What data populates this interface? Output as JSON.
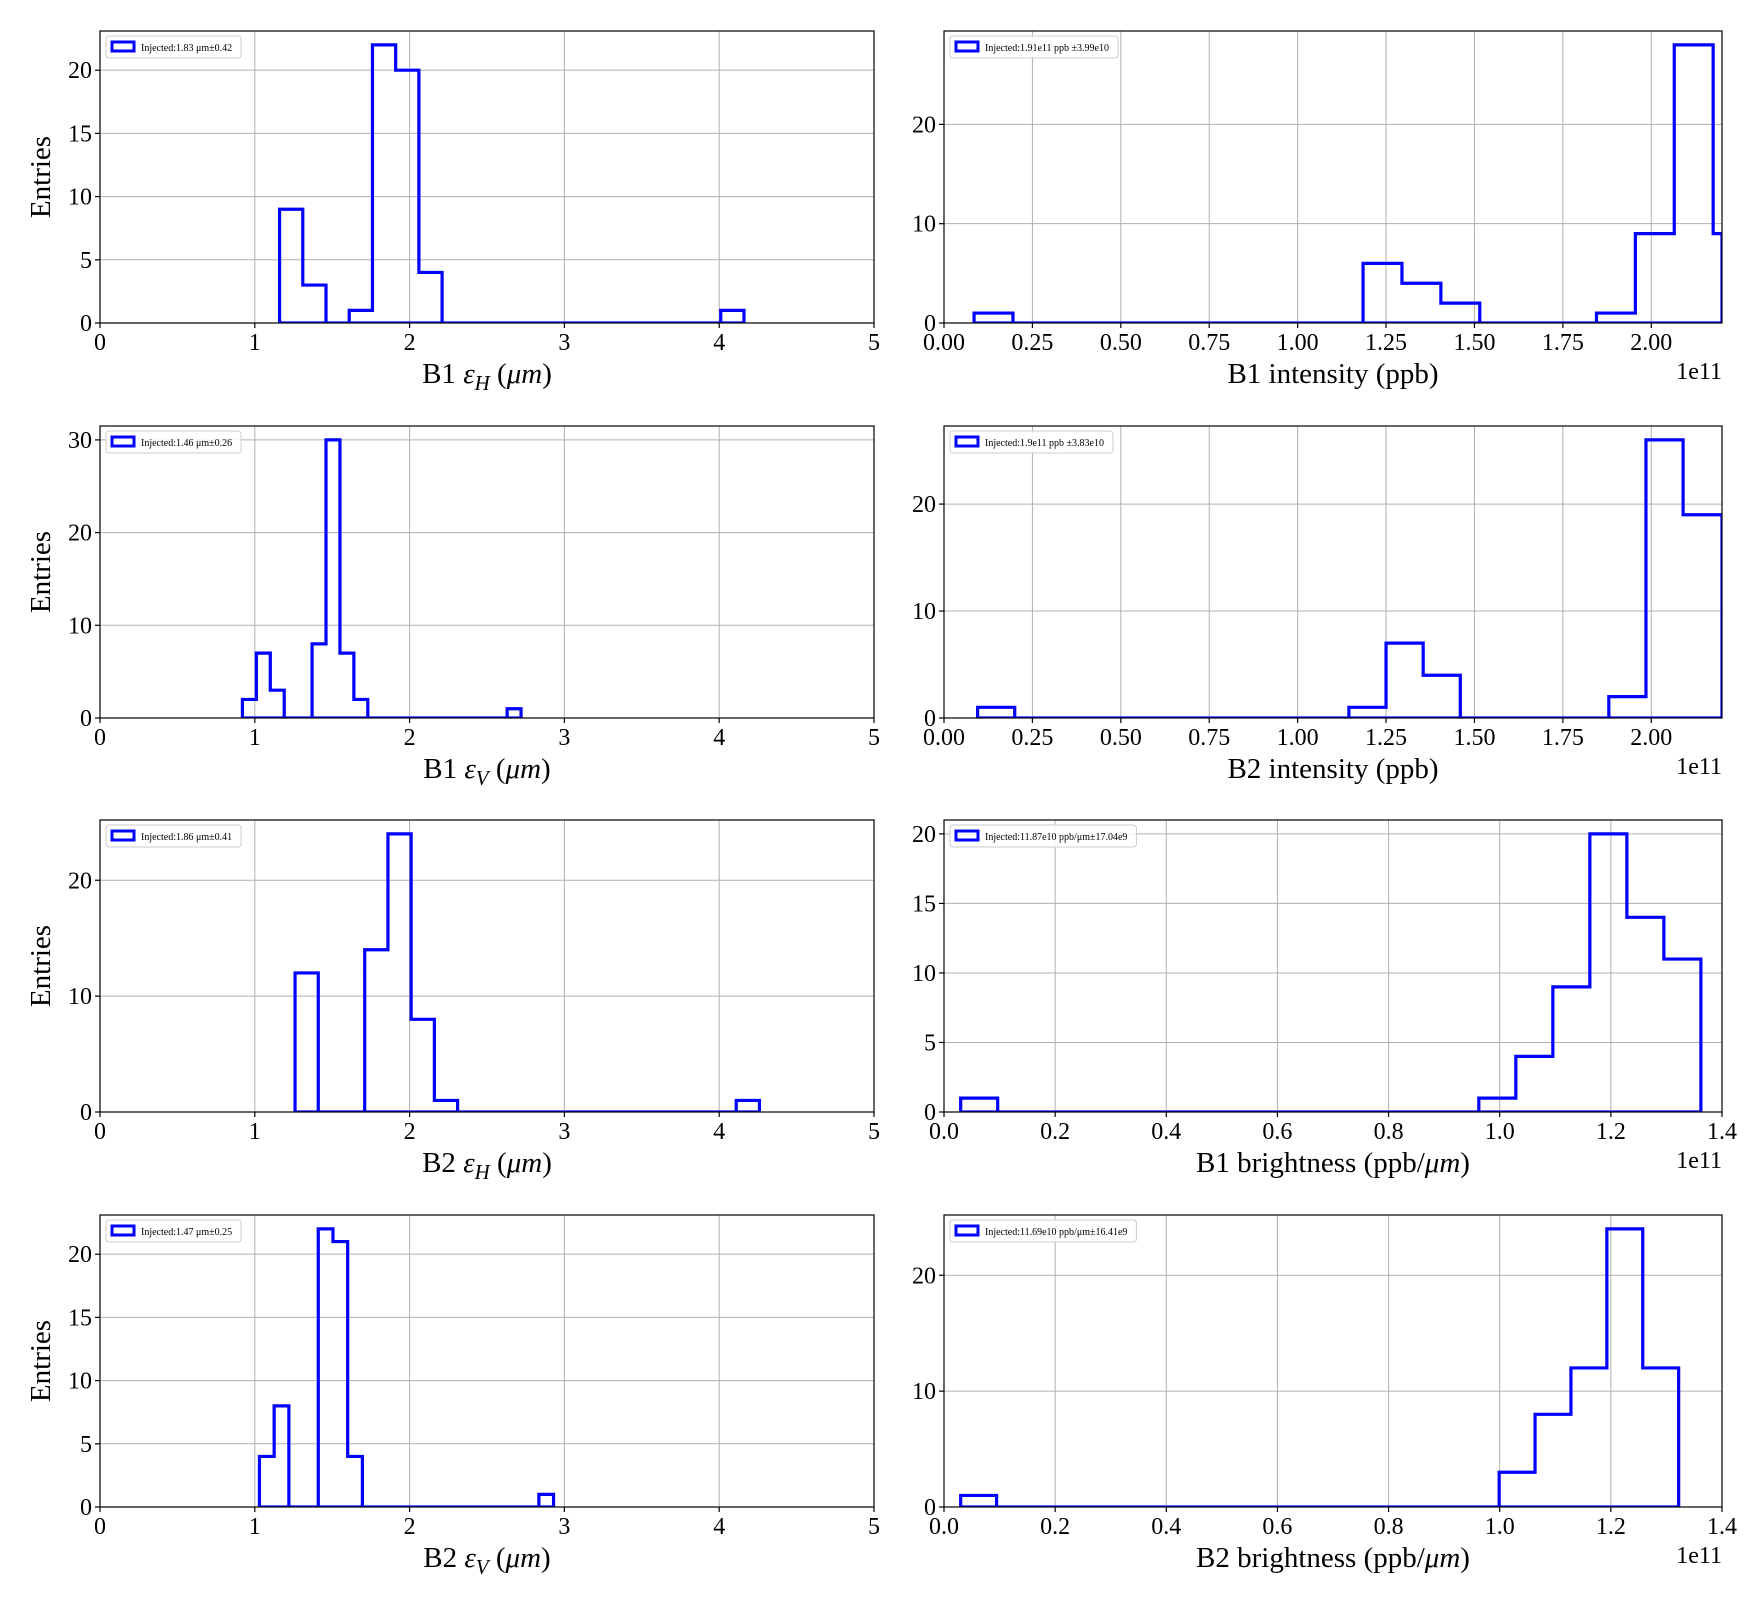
{
  "chart_data": [
    {
      "type": "histogram",
      "xlabel": [
        "B1 ",
        "ε",
        "H",
        " (",
        "μm",
        ")"
      ],
      "ylabel": "Entries",
      "xlim": [
        0,
        5
      ],
      "ylim": [
        0,
        23.1
      ],
      "xticks": [
        0,
        1,
        2,
        3,
        4,
        5
      ],
      "xtick_labels": [
        "0",
        "1",
        "2",
        "3",
        "4",
        "5"
      ],
      "yticks": [
        0,
        5,
        10,
        15,
        20
      ],
      "ytick_labels": [
        "0",
        "5",
        "10",
        "15",
        "20"
      ],
      "offset_text": "",
      "grid": true,
      "legend": "top-left",
      "legend_label": "Injected:1.83 μm±0.42",
      "bin_edges": [
        1.16,
        1.31,
        1.46,
        1.61,
        1.76,
        1.91,
        2.06,
        2.21,
        2.36,
        2.51,
        2.66,
        2.81,
        2.96,
        3.11,
        3.26,
        3.41,
        3.56,
        3.71,
        3.86,
        4.01,
        4.16
      ],
      "counts": [
        9,
        3,
        0,
        1,
        22,
        20,
        4,
        0,
        0,
        0,
        0,
        0,
        0,
        0,
        0,
        0,
        0,
        0,
        0,
        1
      ]
    },
    {
      "type": "histogram",
      "xlabel": [
        "B1 intensity (ppb)"
      ],
      "ylabel": "",
      "xlim": [
        0,
        2.2
      ],
      "ylim": [
        0,
        29.4
      ],
      "xticks": [
        0,
        0.25,
        0.5,
        0.75,
        1.0,
        1.25,
        1.5,
        1.75,
        2.0
      ],
      "xtick_labels": [
        "0.00",
        "0.25",
        "0.50",
        "0.75",
        "1.00",
        "1.25",
        "1.50",
        "1.75",
        "2.00"
      ],
      "yticks": [
        0,
        10,
        20
      ],
      "ytick_labels": [
        "0",
        "10",
        "20"
      ],
      "offset_text": "1e11",
      "grid": true,
      "legend": "top-left",
      "legend_label": "Injected:1.91e11 ppb ±3.99e10",
      "bin_edges": [
        0.085,
        0.195,
        0.305,
        0.415,
        0.525,
        0.635,
        0.745,
        0.855,
        0.965,
        1.075,
        1.185,
        1.295,
        1.405,
        1.515,
        1.625,
        1.735,
        1.845,
        1.955,
        2.065,
        2.175,
        2.2
      ],
      "counts": [
        1,
        0,
        0,
        0,
        0,
        0,
        0,
        0,
        0,
        0,
        6,
        4,
        2,
        0,
        0,
        0,
        1,
        9,
        28,
        9
      ]
    },
    {
      "type": "histogram",
      "xlabel": [
        "B1 ",
        "ε",
        "V",
        " (",
        "μm",
        ")"
      ],
      "ylabel": "Entries",
      "xlim": [
        0,
        5
      ],
      "ylim": [
        0,
        31.5
      ],
      "xticks": [
        0,
        1,
        2,
        3,
        4,
        5
      ],
      "xtick_labels": [
        "0",
        "1",
        "2",
        "3",
        "4",
        "5"
      ],
      "yticks": [
        0,
        10,
        20,
        30
      ],
      "ytick_labels": [
        "0",
        "10",
        "20",
        "30"
      ],
      "offset_text": "",
      "grid": true,
      "legend": "top-left",
      "legend_label": "Injected:1.46 μm±0.26",
      "bin_edges": [
        0.92,
        1.01,
        1.1,
        1.19,
        1.28,
        1.37,
        1.46,
        1.55,
        1.64,
        1.73,
        1.82,
        1.91,
        2.0,
        2.09,
        2.18,
        2.27,
        2.36,
        2.45,
        2.54,
        2.63,
        2.72
      ],
      "counts": [
        2,
        7,
        3,
        0,
        0,
        8,
        30,
        7,
        2,
        0,
        0,
        0,
        0,
        0,
        0,
        0,
        0,
        0,
        0,
        1
      ]
    },
    {
      "type": "histogram",
      "xlabel": [
        "B2 intensity (ppb)"
      ],
      "ylabel": "",
      "xlim": [
        0,
        2.2
      ],
      "ylim": [
        0,
        27.3
      ],
      "xticks": [
        0,
        0.25,
        0.5,
        0.75,
        1.0,
        1.25,
        1.5,
        1.75,
        2.0
      ],
      "xtick_labels": [
        "0.00",
        "0.25",
        "0.50",
        "0.75",
        "1.00",
        "1.25",
        "1.50",
        "1.75",
        "2.00"
      ],
      "yticks": [
        0,
        10,
        20
      ],
      "ytick_labels": [
        "0",
        "10",
        "20"
      ],
      "offset_text": "1e11",
      "grid": true,
      "legend": "top-left",
      "legend_label": "Injected:1.9e11 ppb ±3.83e10",
      "bin_edges": [
        0.095,
        0.2,
        0.305,
        0.41,
        0.515,
        0.62,
        0.725,
        0.83,
        0.935,
        1.04,
        1.145,
        1.25,
        1.355,
        1.46,
        1.565,
        1.67,
        1.775,
        1.88,
        1.985,
        2.09,
        2.2
      ],
      "counts": [
        1,
        0,
        0,
        0,
        0,
        0,
        0,
        0,
        0,
        0,
        1,
        7,
        4,
        0,
        0,
        0,
        0,
        2,
        26,
        19
      ]
    },
    {
      "type": "histogram",
      "xlabel": [
        "B2 ",
        "ε",
        "H",
        " (",
        "μm",
        ")"
      ],
      "ylabel": "Entries",
      "xlim": [
        0,
        5
      ],
      "ylim": [
        0,
        25.2
      ],
      "xticks": [
        0,
        1,
        2,
        3,
        4,
        5
      ],
      "xtick_labels": [
        "0",
        "1",
        "2",
        "3",
        "4",
        "5"
      ],
      "yticks": [
        0,
        10,
        20
      ],
      "ytick_labels": [
        "0",
        "10",
        "20"
      ],
      "offset_text": "",
      "grid": true,
      "legend": "top-left",
      "legend_label": "Injected:1.86 μm±0.41",
      "bin_edges": [
        1.26,
        1.41,
        1.56,
        1.71,
        1.86,
        2.01,
        2.16,
        2.31,
        2.46,
        2.61,
        2.76,
        2.91,
        3.06,
        3.21,
        3.36,
        3.51,
        3.66,
        3.81,
        3.96,
        4.11,
        4.26
      ],
      "counts": [
        12,
        0,
        0,
        14,
        24,
        8,
        1,
        0,
        0,
        0,
        0,
        0,
        0,
        0,
        0,
        0,
        0,
        0,
        0,
        1
      ]
    },
    {
      "type": "histogram",
      "xlabel": [
        "B1 brightness (ppb/",
        "μm",
        ")"
      ],
      "ylabel": "",
      "xlim": [
        0,
        1.4
      ],
      "ylim": [
        0,
        21
      ],
      "xticks": [
        0,
        0.2,
        0.4,
        0.6,
        0.8,
        1.0,
        1.2,
        1.4
      ],
      "xtick_labels": [
        "0.0",
        "0.2",
        "0.4",
        "0.6",
        "0.8",
        "1.0",
        "1.2",
        "1.4"
      ],
      "yticks": [
        0,
        5,
        10,
        15,
        20
      ],
      "ytick_labels": [
        "0",
        "5",
        "10",
        "15",
        "20"
      ],
      "offset_text": "1e11",
      "grid": true,
      "legend": "top-left",
      "legend_label": "Injected:11.87e10 ppb/μm±17.04e9",
      "bin_edges": [
        0.03,
        0.0966,
        0.1632,
        0.2298,
        0.2964,
        0.363,
        0.4296,
        0.4962,
        0.5628,
        0.6294,
        0.696,
        0.7626,
        0.8292,
        0.8958,
        0.9624,
        1.029,
        1.0956,
        1.1622,
        1.2288,
        1.2954,
        1.362
      ],
      "counts": [
        1,
        0,
        0,
        0,
        0,
        0,
        0,
        0,
        0,
        0,
        0,
        0,
        0,
        0,
        1,
        4,
        9,
        20,
        14,
        11
      ]
    },
    {
      "type": "histogram",
      "xlabel": [
        "B2 ",
        "ε",
        "V",
        " (",
        "μm",
        ")"
      ],
      "ylabel": "Entries",
      "xlim": [
        0,
        5
      ],
      "ylim": [
        0,
        23.1
      ],
      "xticks": [
        0,
        1,
        2,
        3,
        4,
        5
      ],
      "xtick_labels": [
        "0",
        "1",
        "2",
        "3",
        "4",
        "5"
      ],
      "yticks": [
        0,
        5,
        10,
        15,
        20
      ],
      "ytick_labels": [
        "0",
        "5",
        "10",
        "15",
        "20"
      ],
      "offset_text": "",
      "grid": true,
      "legend": "top-left",
      "legend_label": "Injected:1.47 μm±0.25",
      "bin_edges": [
        1.03,
        1.125,
        1.22,
        1.315,
        1.41,
        1.505,
        1.6,
        1.695,
        1.79,
        1.885,
        1.98,
        2.075,
        2.17,
        2.265,
        2.36,
        2.455,
        2.55,
        2.645,
        2.74,
        2.835,
        2.93
      ],
      "counts": [
        4,
        8,
        0,
        0,
        22,
        21,
        4,
        0,
        0,
        0,
        0,
        0,
        0,
        0,
        0,
        0,
        0,
        0,
        0,
        1
      ]
    },
    {
      "type": "histogram",
      "xlabel": [
        "B2 brightness (ppb/",
        "μm",
        ")"
      ],
      "ylabel": "",
      "xlim": [
        0,
        1.4
      ],
      "ylim": [
        0,
        25.2
      ],
      "xticks": [
        0,
        0.2,
        0.4,
        0.6,
        0.8,
        1.0,
        1.2,
        1.4
      ],
      "xtick_labels": [
        "0.0",
        "0.2",
        "0.4",
        "0.6",
        "0.8",
        "1.0",
        "1.2",
        "1.4"
      ],
      "yticks": [
        0,
        10,
        20
      ],
      "ytick_labels": [
        "0",
        "10",
        "20"
      ],
      "offset_text": "1e11",
      "grid": true,
      "legend": "top-left",
      "legend_label": "Injected:11.69e10 ppb/μm±16.41e9",
      "bin_edges": [
        0.03,
        0.0946,
        0.1592,
        0.2238,
        0.2884,
        0.353,
        0.4176,
        0.4822,
        0.5468,
        0.6114,
        0.676,
        0.7406,
        0.8052,
        0.8698,
        0.9344,
        0.999,
        1.0636,
        1.1282,
        1.1928,
        1.2574,
        1.322
      ],
      "counts": [
        1,
        0,
        0,
        0,
        0,
        0,
        0,
        0,
        0,
        0,
        0,
        0,
        0,
        0,
        0,
        3,
        8,
        12,
        24,
        12
      ]
    }
  ]
}
